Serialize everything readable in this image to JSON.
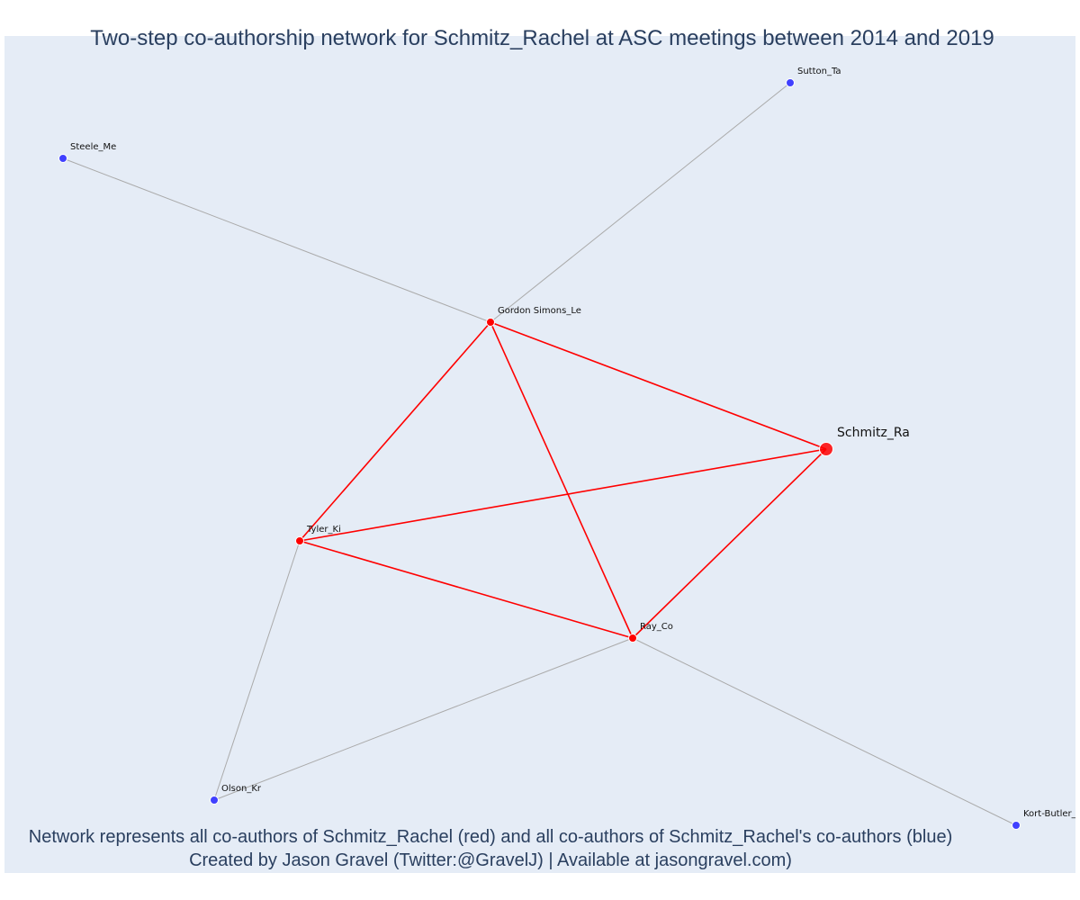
{
  "title": "Two-step co-authorship network for Schmitz_Rachel at ASC meetings between 2014 and 2019",
  "footer": {
    "line1": "Network represents all co-authors of Schmitz_Rachel (red) and all co-authors of Schmitz_Rachel's co-authors (blue)",
    "line2": "Created by Jason Gravel (Twitter:@GravelJ) | Available at jasongravel.com)"
  },
  "colors": {
    "background": "#e5ecf6",
    "first_degree": "#ff0000",
    "second_degree": "#4040ff",
    "second_degree_edge": "#aaaaaa"
  },
  "network": {
    "nodes": [
      {
        "id": "Schmitz_Ra",
        "label": "Schmitz_Ra",
        "group": "focal"
      },
      {
        "id": "Gordon Simons_Le",
        "label": "Gordon Simons_Le",
        "group": "first_degree"
      },
      {
        "id": "Tyler_Ki",
        "label": "Tyler_Ki",
        "group": "first_degree"
      },
      {
        "id": "Ray_Co",
        "label": "Ray_Co",
        "group": "first_degree"
      },
      {
        "id": "Sutton_Ta",
        "label": "Sutton_Ta",
        "group": "second_degree"
      },
      {
        "id": "Steele_Me",
        "label": "Steele_Me",
        "group": "second_degree"
      },
      {
        "id": "Olson_Kr",
        "label": "Olson_Kr",
        "group": "second_degree"
      },
      {
        "id": "Kort-Butler_L",
        "label": "Kort-Butler_L",
        "group": "second_degree"
      }
    ],
    "edges": [
      {
        "source": "Gordon Simons_Le",
        "target": "Schmitz_Ra",
        "type": "first_degree"
      },
      {
        "source": "Gordon Simons_Le",
        "target": "Tyler_Ki",
        "type": "first_degree"
      },
      {
        "source": "Gordon Simons_Le",
        "target": "Ray_Co",
        "type": "first_degree"
      },
      {
        "source": "Tyler_Ki",
        "target": "Schmitz_Ra",
        "type": "first_degree"
      },
      {
        "source": "Tyler_Ki",
        "target": "Ray_Co",
        "type": "first_degree"
      },
      {
        "source": "Ray_Co",
        "target": "Schmitz_Ra",
        "type": "first_degree"
      },
      {
        "source": "Gordon Simons_Le",
        "target": "Sutton_Ta",
        "type": "second_degree"
      },
      {
        "source": "Gordon Simons_Le",
        "target": "Steele_Me",
        "type": "second_degree"
      },
      {
        "source": "Tyler_Ki",
        "target": "Olson_Kr",
        "type": "second_degree"
      },
      {
        "source": "Ray_Co",
        "target": "Olson_Kr",
        "type": "second_degree"
      },
      {
        "source": "Ray_Co",
        "target": "Kort-Butler_L",
        "type": "second_degree"
      }
    ]
  }
}
